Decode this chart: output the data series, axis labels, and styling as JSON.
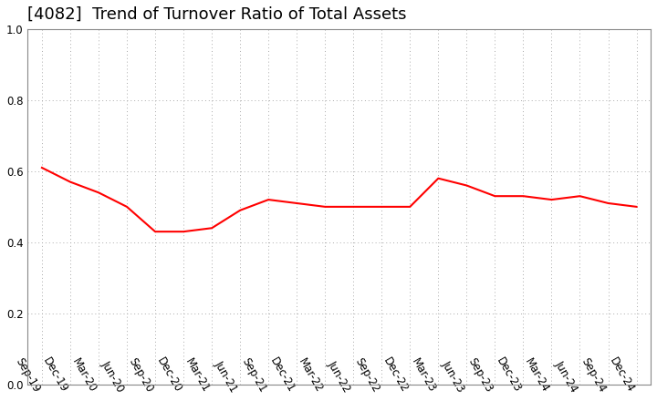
{
  "title": "[4082]  Trend of Turnover Ratio of Total Assets",
  "x_labels": [
    "Sep-19",
    "Dec-19",
    "Mar-20",
    "Jun-20",
    "Sep-20",
    "Dec-20",
    "Mar-21",
    "Jun-21",
    "Sep-21",
    "Dec-21",
    "Mar-22",
    "Jun-22",
    "Sep-22",
    "Dec-22",
    "Mar-23",
    "Jun-23",
    "Sep-23",
    "Dec-23",
    "Mar-24",
    "Jun-24",
    "Sep-24",
    "Dec-24"
  ],
  "y_values": [
    0.61,
    0.57,
    0.54,
    0.5,
    0.43,
    0.43,
    0.44,
    0.49,
    0.52,
    0.51,
    0.5,
    0.5,
    0.5,
    0.5,
    0.58,
    0.56,
    0.53,
    0.53,
    0.52,
    0.53,
    0.51,
    0.5
  ],
  "line_color": "#FF0000",
  "line_width": 1.5,
  "ylim": [
    0.0,
    1.0
  ],
  "yticks": [
    0.0,
    0.2,
    0.4,
    0.6,
    0.8,
    1.0
  ],
  "grid_color": "#aaaaaa",
  "background_color": "#ffffff",
  "title_fontsize": 13,
  "tick_fontsize": 8.5,
  "label_rotation": -60
}
